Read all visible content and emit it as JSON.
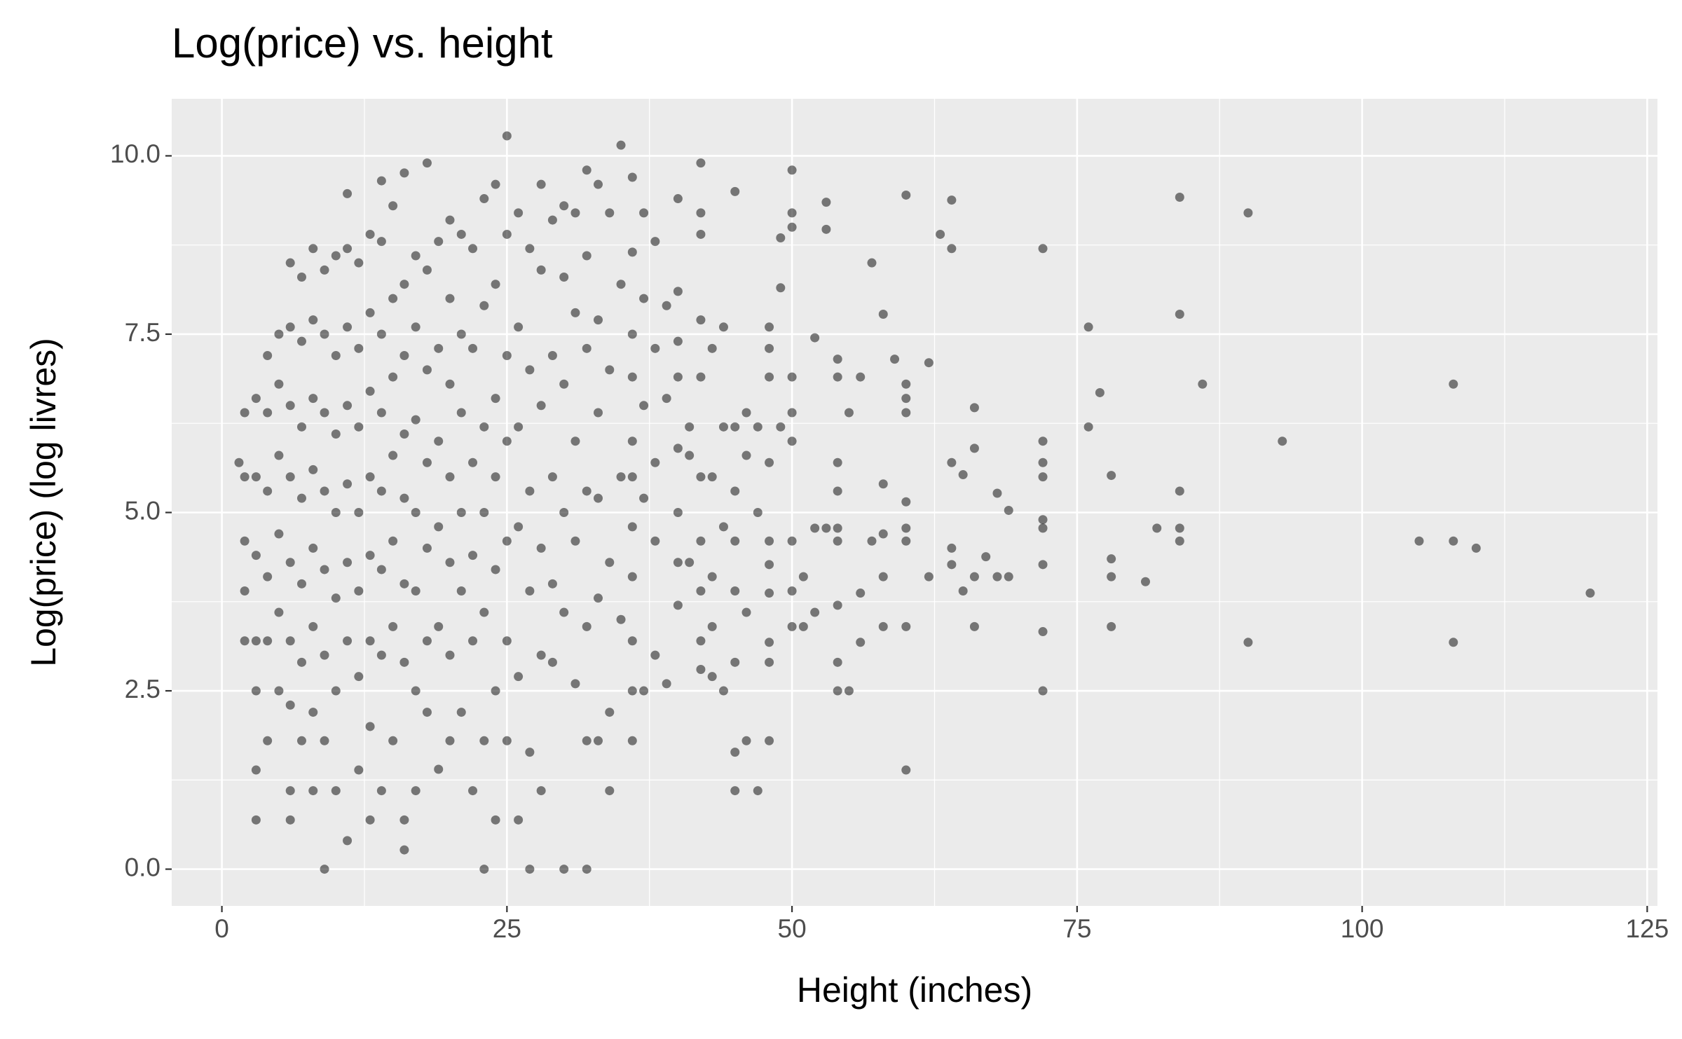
{
  "chart_data": {
    "type": "scatter",
    "title": "Log(price) vs. height",
    "x_label": "Height (inches)",
    "y_label": "Log(price) (log livres)",
    "color": "#000000",
    "opacity": 0.5,
    "grid": true,
    "minor_grid": true,
    "xlim": [
      -4.4,
      125.9
    ],
    "ylim": [
      -0.515,
      10.8
    ],
    "xticks": [
      0,
      25,
      50,
      75,
      100,
      125
    ],
    "yticks": [
      {
        "value": 0,
        "label": "0.0"
      },
      2.5,
      {
        "value": 5,
        "label": "5.0"
      },
      7.5,
      {
        "value": 10,
        "label": "10.0"
      }
    ],
    "x": [
      120,
      110,
      108,
      108,
      108,
      105,
      93,
      90,
      90,
      86,
      84,
      84,
      84,
      84,
      84,
      82,
      81,
      78,
      78,
      78,
      78,
      77,
      76,
      76,
      72,
      72,
      72,
      72,
      72,
      72,
      72,
      72,
      72,
      69,
      69,
      68,
      68,
      67,
      66,
      66,
      66,
      66,
      65,
      65,
      64,
      64,
      64,
      64,
      64,
      63,
      62,
      62,
      60,
      60,
      60,
      60,
      60,
      60,
      60,
      60,
      60,
      59,
      58,
      58,
      58,
      58,
      58,
      57,
      57,
      56,
      56,
      56,
      55,
      55,
      54,
      54,
      54,
      54,
      54,
      54,
      54,
      54,
      54,
      53,
      53,
      53,
      52,
      52,
      52,
      51,
      51,
      50,
      50,
      50,
      50,
      50,
      50,
      50,
      50,
      50,
      49,
      49,
      49,
      48,
      48,
      48,
      48,
      48,
      48,
      48,
      48,
      48,
      48,
      47,
      47,
      47,
      46,
      46,
      46,
      46,
      45,
      45,
      45,
      45,
      45,
      45,
      45,
      45,
      44,
      44,
      44,
      44,
      43,
      43,
      43,
      43,
      43,
      42,
      42,
      42,
      42,
      42,
      42,
      42,
      42,
      42,
      42,
      41,
      41,
      41,
      40,
      40,
      40,
      40,
      40,
      40,
      40,
      40,
      39,
      39,
      39,
      38,
      38,
      38,
      38,
      38,
      37,
      37,
      37,
      37,
      37,
      36,
      36,
      36,
      36,
      36,
      36,
      36,
      36,
      36,
      36,
      36,
      35,
      35,
      35,
      35,
      34,
      34,
      34,
      34,
      34,
      33,
      33,
      33,
      33,
      33,
      33,
      32,
      32,
      32,
      32,
      32,
      32,
      32,
      31,
      31,
      31,
      31,
      31,
      30,
      30,
      30,
      30,
      30,
      30,
      29,
      29,
      29,
      29,
      29,
      28,
      28,
      28,
      28,
      28,
      28,
      27,
      27,
      27,
      27,
      27,
      27,
      26,
      26,
      26,
      26,
      26,
      26,
      25,
      25,
      25,
      25,
      25,
      25,
      25,
      24,
      24,
      24,
      24,
      24,
      24,
      24,
      23,
      23,
      23,
      23,
      23,
      23,
      23,
      22,
      22,
      22,
      22,
      22,
      22,
      21,
      21,
      21,
      21,
      21,
      21,
      20,
      20,
      20,
      20,
      20,
      20,
      20,
      19,
      19,
      19,
      19,
      19,
      19,
      18,
      18,
      18,
      18,
      18,
      18,
      18,
      17,
      17,
      17,
      17,
      17,
      17,
      17,
      16,
      16,
      16,
      16,
      16,
      16,
      16,
      16,
      16,
      15,
      15,
      15,
      15,
      15,
      15,
      15,
      14,
      14,
      14,
      14,
      14,
      14,
      14,
      14,
      13,
      13,
      13,
      13,
      13,
      13,
      13,
      13,
      12,
      12,
      12,
      12,
      12,
      12,
      12,
      11,
      11,
      11,
      11,
      11,
      11,
      11,
      11,
      10,
      10,
      10,
      10,
      10,
      10,
      10,
      9,
      9,
      9,
      9,
      9,
      9,
      9,
      9,
      8,
      8,
      8,
      8,
      8,
      8,
      8,
      8,
      7,
      7,
      7,
      7,
      7,
      7,
      7,
      6,
      6,
      6,
      6,
      6,
      6,
      6,
      6,
      6,
      5,
      5,
      5,
      5,
      5,
      5,
      4,
      4,
      4,
      4,
      4,
      4,
      3,
      3,
      3,
      3,
      3,
      3,
      3,
      2,
      2,
      2,
      2,
      2,
      1.5
    ],
    "values": [
      3.87,
      4.5,
      6.8,
      4.6,
      3.18,
      4.6,
      6.0,
      9.2,
      3.18,
      6.8,
      9.42,
      7.78,
      5.3,
      4.78,
      4.6,
      4.78,
      4.03,
      5.52,
      4.35,
      4.1,
      3.4,
      6.68,
      7.6,
      6.2,
      8.7,
      6.0,
      5.7,
      5.5,
      4.9,
      4.78,
      4.27,
      3.33,
      2.5,
      5.03,
      4.1,
      5.27,
      4.1,
      4.38,
      6.47,
      5.9,
      4.1,
      3.4,
      5.53,
      3.9,
      9.38,
      8.7,
      5.7,
      4.5,
      4.27,
      8.9,
      7.1,
      4.1,
      9.45,
      6.8,
      6.6,
      6.4,
      5.15,
      4.78,
      4.6,
      3.4,
      1.39,
      7.15,
      7.78,
      5.4,
      4.7,
      4.1,
      3.4,
      8.5,
      4.6,
      6.9,
      3.87,
      3.18,
      6.4,
      2.5,
      7.15,
      6.9,
      5.7,
      5.3,
      4.78,
      4.6,
      3.7,
      2.9,
      2.5,
      9.35,
      8.97,
      4.78,
      7.45,
      4.78,
      3.6,
      4.1,
      3.4,
      9.8,
      9.2,
      9.0,
      6.9,
      6.4,
      6.0,
      4.6,
      3.9,
      3.4,
      8.15,
      8.85,
      6.2,
      7.6,
      7.3,
      6.9,
      5.7,
      4.6,
      4.27,
      3.87,
      3.18,
      2.9,
      1.8,
      6.2,
      5.0,
      1.1,
      6.4,
      5.8,
      3.6,
      1.8,
      9.5,
      6.2,
      5.3,
      4.6,
      3.9,
      2.9,
      1.64,
      1.1,
      7.6,
      6.2,
      4.8,
      2.5,
      7.3,
      5.5,
      4.1,
      3.4,
      2.7,
      9.9,
      9.2,
      8.9,
      7.7,
      6.9,
      5.5,
      4.6,
      3.9,
      3.2,
      2.8,
      6.2,
      5.8,
      4.3,
      9.4,
      8.1,
      7.4,
      6.9,
      5.9,
      5.0,
      4.3,
      3.7,
      7.9,
      6.6,
      2.6,
      8.8,
      7.3,
      5.7,
      4.6,
      3.0,
      9.2,
      8.0,
      6.5,
      5.2,
      2.5,
      9.7,
      8.65,
      7.5,
      6.9,
      6.0,
      5.5,
      4.8,
      4.1,
      3.2,
      2.5,
      1.8,
      10.15,
      8.2,
      5.5,
      3.5,
      9.2,
      7.0,
      4.3,
      2.2,
      1.1,
      9.6,
      7.7,
      6.4,
      5.2,
      3.8,
      1.8,
      9.8,
      8.6,
      7.3,
      5.3,
      3.4,
      1.8,
      0.0,
      9.2,
      7.8,
      6.0,
      4.6,
      2.6,
      9.3,
      8.3,
      6.8,
      5.0,
      3.6,
      0.0,
      9.1,
      7.2,
      5.5,
      4.0,
      2.9,
      9.6,
      8.4,
      6.5,
      4.5,
      3.0,
      1.1,
      8.7,
      7.0,
      5.3,
      3.9,
      1.64,
      0.0,
      9.2,
      7.6,
      6.2,
      4.8,
      2.7,
      0.69,
      10.28,
      8.9,
      7.2,
      6.0,
      4.6,
      3.2,
      1.8,
      9.6,
      8.2,
      6.6,
      5.5,
      4.2,
      2.5,
      0.69,
      9.4,
      7.9,
      6.2,
      5.0,
      3.6,
      1.8,
      0.0,
      8.7,
      7.3,
      5.7,
      4.4,
      3.2,
      1.1,
      8.9,
      7.5,
      6.4,
      5.0,
      3.9,
      2.2,
      9.1,
      8.0,
      6.8,
      5.5,
      4.3,
      3.0,
      1.8,
      8.8,
      7.3,
      6.0,
      4.8,
      3.4,
      1.4,
      9.9,
      8.4,
      7.0,
      5.7,
      4.5,
      3.2,
      2.2,
      8.6,
      7.6,
      6.3,
      5.0,
      3.9,
      2.5,
      1.1,
      9.76,
      8.2,
      7.2,
      6.1,
      5.2,
      4.0,
      2.9,
      0.69,
      0.27,
      9.3,
      8.0,
      6.9,
      5.8,
      4.6,
      3.4,
      1.8,
      9.65,
      8.8,
      7.5,
      6.4,
      5.3,
      4.2,
      3.0,
      1.1,
      8.9,
      7.8,
      6.7,
      5.5,
      4.4,
      3.2,
      2.0,
      0.69,
      8.5,
      7.3,
      6.2,
      5.0,
      3.9,
      2.7,
      1.39,
      9.47,
      8.7,
      7.6,
      6.5,
      5.4,
      4.3,
      3.2,
      0.4,
      8.6,
      7.2,
      6.1,
      5.0,
      3.8,
      2.5,
      1.1,
      8.4,
      7.5,
      6.4,
      5.3,
      4.2,
      3.0,
      1.8,
      0.0,
      8.7,
      7.7,
      6.6,
      5.6,
      4.5,
      3.4,
      2.2,
      1.1,
      8.3,
      7.4,
      6.2,
      5.2,
      4.0,
      2.9,
      1.8,
      8.5,
      7.6,
      6.5,
      5.5,
      4.3,
      3.2,
      2.3,
      1.1,
      0.69,
      7.5,
      6.8,
      5.8,
      4.7,
      3.6,
      2.5,
      7.2,
      6.4,
      5.3,
      4.1,
      3.2,
      1.8,
      6.6,
      5.5,
      4.4,
      3.2,
      2.5,
      1.39,
      0.69,
      6.4,
      5.5,
      4.6,
      3.9,
      3.2,
      5.7
    ]
  }
}
